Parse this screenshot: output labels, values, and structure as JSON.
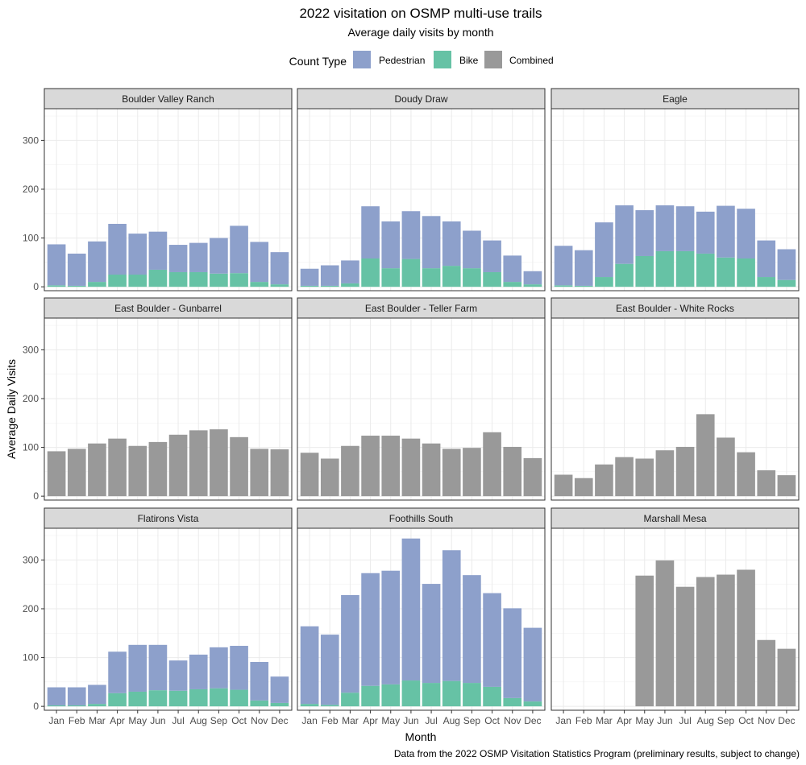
{
  "chart_data": {
    "type": "bar",
    "title": "2022 visitation on OSMP multi-use trails",
    "subtitle": "Average daily visits by month",
    "xlabel": "Month",
    "ylabel": "Average Daily Visits",
    "caption": "Data from the 2022 OSMP Visitation Statistics Program (preliminary results, subject to change)",
    "legend": {
      "title": "Count Type",
      "position": "top",
      "items": [
        {
          "name": "Pedestrian",
          "color": "#8DA0CB"
        },
        {
          "name": "Bike",
          "color": "#66C2A5"
        },
        {
          "name": "Combined",
          "color": "#999999"
        }
      ]
    },
    "categories": [
      "Jan",
      "Feb",
      "Mar",
      "Apr",
      "May",
      "Jun",
      "Jul",
      "Aug",
      "Sep",
      "Oct",
      "Nov",
      "Dec"
    ],
    "yticks": [
      0,
      100,
      200,
      300
    ],
    "ylim": [
      -8,
      365
    ],
    "grid": true,
    "facets": [
      {
        "name": "Boulder Valley Ranch",
        "type": "stacked",
        "series": [
          {
            "name": "Bike",
            "values": [
              3,
              2,
              10,
              25,
              25,
              35,
              30,
              30,
              27,
              28,
              10,
              5
            ]
          },
          {
            "name": "Pedestrian",
            "values": [
              84,
              66,
              83,
              104,
              84,
              78,
              56,
              60,
              73,
              97,
              82,
              66
            ]
          }
        ]
      },
      {
        "name": "Doudy Draw",
        "type": "stacked",
        "series": [
          {
            "name": "Bike",
            "values": [
              2,
              2,
              7,
              58,
              38,
              57,
              38,
              43,
              38,
              30,
              10,
              5
            ]
          },
          {
            "name": "Pedestrian",
            "values": [
              35,
              42,
              47,
              107,
              96,
              98,
              107,
              91,
              77,
              65,
              54,
              27
            ]
          }
        ]
      },
      {
        "name": "Eagle",
        "type": "stacked",
        "series": [
          {
            "name": "Bike",
            "values": [
              3,
              2,
              20,
              47,
              63,
              73,
              73,
              68,
              60,
              58,
              20,
              14
            ]
          },
          {
            "name": "Pedestrian",
            "values": [
              81,
              73,
              112,
              120,
              94,
              94,
              92,
              86,
              106,
              102,
              75,
              63
            ]
          }
        ]
      },
      {
        "name": "East Boulder - Gunbarrel",
        "type": "combined",
        "values": [
          92,
          97,
          108,
          118,
          103,
          111,
          126,
          135,
          137,
          121,
          97,
          96
        ]
      },
      {
        "name": "East Boulder - Teller Farm",
        "type": "combined",
        "values": [
          89,
          77,
          103,
          124,
          124,
          118,
          108,
          97,
          99,
          131,
          101,
          78
        ]
      },
      {
        "name": "East Boulder - White Rocks",
        "type": "combined",
        "values": [
          44,
          37,
          65,
          80,
          77,
          94,
          101,
          168,
          120,
          90,
          53,
          43
        ]
      },
      {
        "name": "Flatirons Vista",
        "type": "stacked",
        "series": [
          {
            "name": "Bike",
            "values": [
              2,
              2,
              5,
              27,
              30,
              33,
              32,
              35,
              37,
              34,
              12,
              7
            ]
          },
          {
            "name": "Pedestrian",
            "values": [
              37,
              37,
              39,
              85,
              96,
              93,
              62,
              71,
              84,
              90,
              79,
              54
            ]
          }
        ]
      },
      {
        "name": "Foothills South",
        "type": "stacked",
        "series": [
          {
            "name": "Bike",
            "values": [
              5,
              3,
              28,
              42,
              45,
              53,
              48,
              52,
              48,
              40,
              17,
              10
            ]
          },
          {
            "name": "Pedestrian",
            "values": [
              159,
              144,
              200,
              231,
              233,
              291,
              203,
              268,
              221,
              192,
              184,
              151
            ]
          }
        ]
      },
      {
        "name": "Marshall Mesa",
        "type": "combined",
        "values": [
          null,
          null,
          null,
          null,
          268,
          299,
          245,
          265,
          270,
          280,
          136,
          118
        ]
      }
    ]
  }
}
